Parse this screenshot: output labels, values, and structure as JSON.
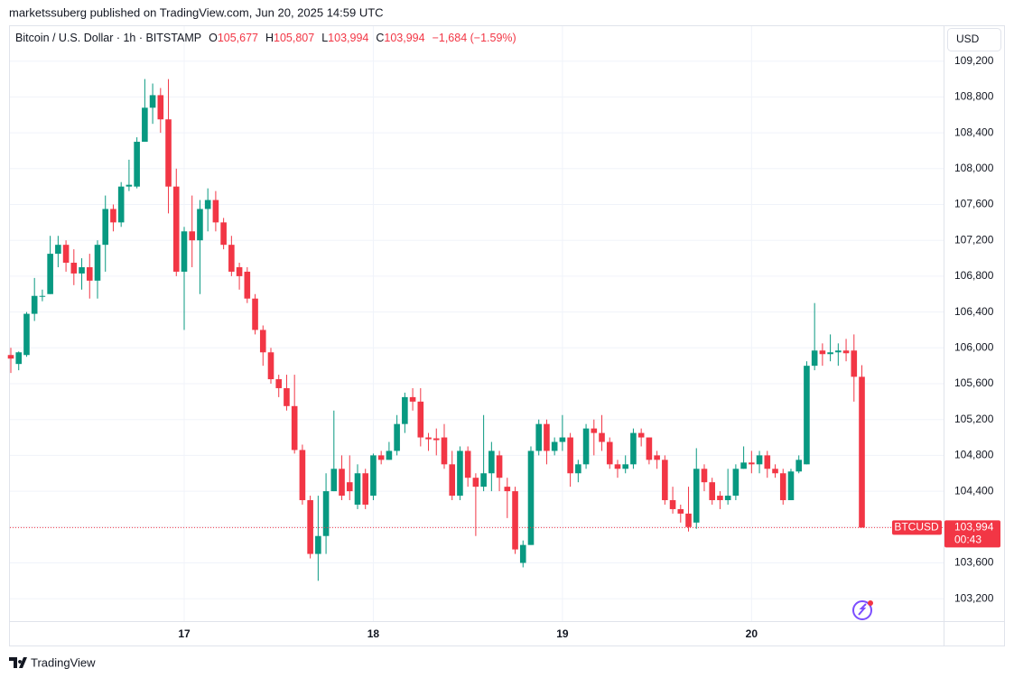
{
  "chart_data": {
    "type": "candlestick",
    "published": "marketssuberg published on TradingView.com, Jun 20, 2025 14:59 UTC",
    "title": "Bitcoin / U.S. Dollar · 1h · BITSTAMP",
    "ohlc_legend": [
      {
        "key": "O",
        "value": "105,677"
      },
      {
        "key": "H",
        "value": "105,807"
      },
      {
        "key": "L",
        "value": "103,994"
      },
      {
        "key": "C",
        "value": "103,994"
      }
    ],
    "change": "−1,684 (−1.59%)",
    "currency": "USD",
    "symbol": "BTCUSD",
    "countdown": "00:43",
    "brand": "TradingView",
    "last_price": {
      "value": 103994,
      "label": "103,994"
    },
    "up_color": "#089981",
    "down_color": "#f23645",
    "grid": true,
    "categories": [
      null,
      null,
      null,
      null,
      null,
      null,
      null,
      null,
      null,
      null,
      null,
      null,
      null,
      null,
      null,
      null,
      null,
      null,
      null,
      null,
      null,
      null,
      "17",
      null,
      null,
      null,
      null,
      null,
      null,
      null,
      null,
      null,
      null,
      null,
      null,
      null,
      null,
      null,
      null,
      null,
      null,
      null,
      null,
      null,
      null,
      null,
      "18",
      null,
      null,
      null,
      null,
      null,
      null,
      null,
      null,
      null,
      null,
      null,
      null,
      null,
      null,
      null,
      null,
      null,
      null,
      null,
      null,
      null,
      null,
      null,
      "19",
      null,
      null,
      null,
      null,
      null,
      null,
      null,
      null,
      null,
      null,
      null,
      null,
      null,
      null,
      null,
      null,
      null,
      null,
      null,
      null,
      null,
      null,
      null,
      "20",
      null,
      null,
      null,
      null,
      null,
      null,
      null,
      null,
      null,
      null,
      null,
      null,
      null,
      null
    ],
    "open": [
      105920,
      105820,
      105920,
      106380,
      106580,
      106600,
      107050,
      107150,
      106950,
      106830,
      106900,
      106750,
      107150,
      107550,
      107400,
      107800,
      107800,
      108300,
      108680,
      108820,
      108550,
      107800,
      106850,
      107300,
      107200,
      107550,
      107650,
      107400,
      107150,
      106900,
      106850,
      106550,
      106200,
      105950,
      105650,
      105550,
      105350,
      104860,
      104300,
      103700,
      103900,
      104400,
      104650,
      104500,
      104250,
      104600,
      104350,
      104800,
      104750,
      104850,
      105150,
      105450,
      105400,
      105000,
      104990,
      105000,
      104700,
      104350,
      104850,
      104550,
      104450,
      104600,
      104800,
      104450,
      104400,
      103600,
      103800,
      104850,
      105150,
      104850,
      104950,
      105000,
      104600,
      104700,
      105100,
      105050,
      104950,
      104700,
      104650,
      104700,
      105050,
      105000,
      104800,
      104750,
      104300,
      104200,
      104150,
      104050,
      104650,
      104500,
      104350,
      104300,
      104350,
      104650,
      104720,
      104700,
      104800,
      104650,
      104600,
      104300,
      104620,
      104700,
      105800,
      105970,
      105930,
      105950,
      105970,
      105970,
      105677
    ],
    "high": [
      106000,
      105960,
      106400,
      106780,
      106650,
      107250,
      107250,
      107200,
      107100,
      107000,
      107050,
      107200,
      107700,
      107600,
      107850,
      108100,
      108350,
      109000,
      108950,
      108900,
      109000,
      108000,
      107350,
      107700,
      107650,
      107780,
      107750,
      107450,
      107250,
      106950,
      106900,
      106600,
      106250,
      106000,
      105700,
      105700,
      105700,
      104920,
      104350,
      104350,
      104600,
      105300,
      104800,
      104800,
      104700,
      104650,
      104820,
      104850,
      104950,
      105250,
      105500,
      105550,
      105550,
      105050,
      105100,
      105150,
      104850,
      104900,
      104900,
      104600,
      105250,
      104950,
      104850,
      104550,
      104450,
      103850,
      104900,
      105200,
      105200,
      105000,
      105250,
      105050,
      104750,
      105150,
      105200,
      105250,
      105000,
      104750,
      104800,
      105100,
      105100,
      105000,
      104850,
      104800,
      104450,
      104250,
      104450,
      104880,
      104700,
      104550,
      104400,
      104650,
      104700,
      104900,
      104850,
      104850,
      104850,
      104700,
      104650,
      104650,
      104800,
      105850,
      106500,
      106050,
      106150,
      106050,
      106100,
      106150,
      105807
    ],
    "low": [
      105720,
      105750,
      105900,
      106300,
      106520,
      106600,
      106900,
      106850,
      106700,
      106650,
      106550,
      106550,
      106850,
      107300,
      107350,
      107750,
      107780,
      108300,
      108500,
      108400,
      107500,
      106800,
      106200,
      106900,
      106600,
      107300,
      107300,
      107100,
      106800,
      106650,
      106500,
      106150,
      105800,
      105600,
      105450,
      105300,
      104820,
      104250,
      103650,
      103400,
      103700,
      104400,
      104300,
      104300,
      104200,
      104200,
      104300,
      104700,
      104750,
      104800,
      105050,
      105300,
      104900,
      104850,
      104800,
      104650,
      104300,
      104300,
      104450,
      103900,
      104400,
      104400,
      104400,
      104100,
      103700,
      103550,
      103800,
      104800,
      104700,
      104800,
      104850,
      104450,
      104500,
      104650,
      104800,
      104850,
      104650,
      104550,
      104600,
      104650,
      104900,
      104700,
      104650,
      104250,
      104150,
      104050,
      103950,
      103980,
      104400,
      104250,
      104200,
      104250,
      104300,
      104650,
      104600,
      104600,
      104550,
      104550,
      104250,
      104300,
      104600,
      104700,
      105750,
      105800,
      105850,
      105800,
      105850,
      105400,
      103994
    ],
    "close": [
      105880,
      105950,
      106380,
      106580,
      106580,
      107050,
      107150,
      106950,
      106830,
      106900,
      106750,
      107150,
      107550,
      107400,
      107800,
      107820,
      108300,
      108680,
      108820,
      108550,
      107800,
      106850,
      107300,
      107200,
      107550,
      107650,
      107400,
      107150,
      106850,
      106800,
      106550,
      106200,
      105950,
      105650,
      105550,
      105350,
      104860,
      104300,
      103700,
      103900,
      104400,
      104650,
      104350,
      104400,
      104600,
      104250,
      104800,
      104750,
      104850,
      105150,
      105450,
      105400,
      105000,
      104980,
      104970,
      104700,
      104350,
      104850,
      104550,
      104450,
      104600,
      104850,
      104550,
      104400,
      103750,
      103800,
      104850,
      105150,
      104850,
      104950,
      105000,
      104600,
      104700,
      105100,
      105050,
      104950,
      104700,
      104650,
      104700,
      105050,
      105000,
      104750,
      104750,
      104300,
      104200,
      104150,
      104000,
      104650,
      104500,
      104300,
      104300,
      104350,
      104650,
      104720,
      104700,
      104800,
      104650,
      104600,
      104300,
      104620,
      104750,
      105800,
      105970,
      105930,
      105950,
      105970,
      105940,
      105677,
      103994
    ],
    "ylim": [
      102950,
      109580
    ],
    "yticks": [
      {
        "value": 103200,
        "label": "103,200"
      },
      {
        "value": 103600,
        "label": "103,600"
      },
      {
        "value": 104000,
        "label": "104,000"
      },
      {
        "value": 104400,
        "label": "104,400"
      },
      {
        "value": 104800,
        "label": "104,800"
      },
      {
        "value": 105200,
        "label": "105,200"
      },
      {
        "value": 105600,
        "label": "105,600"
      },
      {
        "value": 106000,
        "label": "106,000"
      },
      {
        "value": 106400,
        "label": "106,400"
      },
      {
        "value": 106800,
        "label": "106,800"
      },
      {
        "value": 107200,
        "label": "107,200"
      },
      {
        "value": 107600,
        "label": "107,600"
      },
      {
        "value": 108000,
        "label": "108,000"
      },
      {
        "value": 108400,
        "label": "108,400"
      },
      {
        "value": 108800,
        "label": "108,800"
      },
      {
        "value": 109200,
        "label": "109,200"
      }
    ]
  }
}
